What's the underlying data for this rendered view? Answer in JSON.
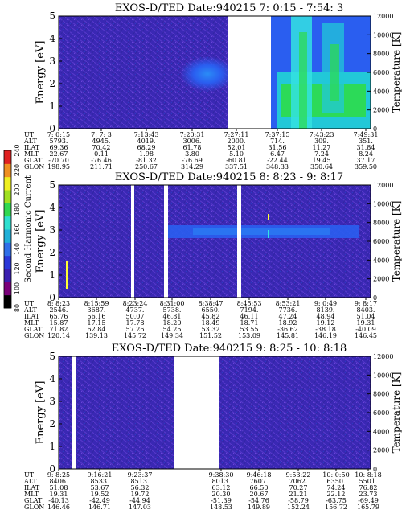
{
  "chart_data": [
    {
      "type": "heatmap",
      "title": "EXOS-D/TED   Date:940215   7: 0:15 - 7:54: 3",
      "ylabel": "Energy [eV]",
      "y2label": "Temperature [K]",
      "ylim": [
        0,
        5
      ],
      "yticks": [
        "0",
        "1",
        "2",
        "3",
        "4",
        "5"
      ],
      "y2lim": [
        0,
        12000
      ],
      "y2ticks": [
        "0",
        "2000",
        "4000",
        "6000",
        "8000",
        "10000",
        "12000"
      ],
      "data_gaps_ut": [
        [
          "7:31:00",
          "7:36:00"
        ]
      ],
      "features": [
        {
          "ut": [
            "7:27:00",
            "7:31:00"
          ],
          "energy_ev": [
            2,
            3
          ],
          "level": "medium-blue"
        },
        {
          "ut": [
            "7:36:00",
            "7:54:03"
          ],
          "energy_ev": [
            0,
            5
          ],
          "level": "high (cyan/green)"
        }
      ],
      "ephemeris": {
        "labels": [
          "UT",
          "ALT",
          "ILAT",
          "MLT",
          "GLAT",
          "GLON"
        ],
        "columns": [
          [
            "7: 0:15",
            "5793.",
            "69.36",
            "22.67",
            "-70.70",
            "198.95"
          ],
          [
            "7: 7: 3",
            "4945.",
            "70.42",
            "0.11",
            "-76.46",
            "211.71"
          ],
          [
            "7:13:43",
            "4019.",
            "68.29",
            "1.98",
            "-81.32",
            "250.67"
          ],
          [
            "7:20:31",
            "3006.",
            "61.78",
            "3.80",
            "-76.69",
            "314.29"
          ],
          [
            "7:27:11",
            "2000.",
            "52.01",
            "5.10",
            "-60.81",
            "337.51"
          ],
          [
            "7:37:15",
            "714.",
            "31.56",
            "6.47",
            "-22.44",
            "348.33"
          ],
          [
            "7:43:23",
            "309.",
            "11.27",
            "7.24",
            "19.45",
            "350.64"
          ],
          [
            "7:49:31",
            "351.",
            "31.84",
            "8.24",
            "37.17",
            "359.50"
          ]
        ]
      }
    },
    {
      "type": "heatmap",
      "title": "EXOS-D/TED   Date:940215   8: 8:23 - 9: 8:17",
      "ylabel": "Energy [eV]",
      "y2label": "Temperature [K]",
      "ylim": [
        0,
        5
      ],
      "yticks": [
        "0",
        "1",
        "2",
        "3",
        "4",
        "5"
      ],
      "y2lim": [
        0,
        12000
      ],
      "y2ticks": [
        "0",
        "2000",
        "4000",
        "6000",
        "8000",
        "10000",
        "12000"
      ],
      "data_gaps_ut": [
        [
          "8:22:30",
          "8:23:10"
        ],
        [
          "8:30:45",
          "8:31:35"
        ],
        [
          "8:44:30",
          "8:45:20"
        ]
      ],
      "features": [
        {
          "ut": [
            "8:31:00",
            "9:00:00"
          ],
          "energy_ev": [
            2.3,
            2.8
          ],
          "level": "medium-blue"
        },
        {
          "ut": [
            "8:09:30",
            "8:09:40"
          ],
          "energy_ev": [
            0.3,
            1.5
          ],
          "level": "high (yellow)"
        }
      ],
      "ephemeris": {
        "labels": [
          "UT",
          "ALT",
          "ILAT",
          "MLT",
          "GLAT",
          "GLON"
        ],
        "columns": [
          [
            "8: 8:23",
            "2546.",
            "65.76",
            "15.87",
            "71.82",
            "120.14"
          ],
          [
            "8:15:59",
            "3687.",
            "56.16",
            "17.15",
            "62.84",
            "139.13"
          ],
          [
            "8:23:24",
            "4737.",
            "50.07",
            "17.78",
            "57.26",
            "145.72"
          ],
          [
            "8:31:00",
            "5738.",
            "46.81",
            "18.20",
            "54.25",
            "149.34"
          ],
          [
            "8:38:47",
            "6550.",
            "45.82",
            "18.49",
            "53.32",
            "151.52"
          ],
          [
            "8:45:53",
            "7194.",
            "46.11",
            "18.71",
            "53.55",
            "153.09"
          ],
          [
            "8:53:21",
            "7736.",
            "47.24",
            "18.92",
            "-36.62",
            "145.81"
          ],
          [
            "9: 0:49",
            "8139.",
            "48.94",
            "19.12",
            "-38.18",
            "146.19"
          ],
          [
            "9: 8:17",
            "8403.",
            "51.04",
            "19.31",
            "-40.09",
            "146.45"
          ]
        ]
      }
    },
    {
      "type": "heatmap",
      "title": "EXOS-D/TED   Date:940215   9: 8:25 - 10: 8:18",
      "ylabel": "Energy [eV]",
      "y2label": "Temperature [K]",
      "ylim": [
        0,
        5
      ],
      "yticks": [
        "0",
        "1",
        "2",
        "3",
        "4",
        "5"
      ],
      "y2lim": [
        0,
        12000
      ],
      "y2ticks": [
        "0",
        "2000",
        "4000",
        "6000",
        "8000",
        "10000",
        "12000"
      ],
      "data_gaps_ut": [
        [
          "9:11:00",
          "9:12:00"
        ],
        [
          "9:31:00",
          "9:38:30"
        ]
      ],
      "features": [],
      "ephemeris": {
        "labels": [
          "UT",
          "ALT",
          "ILAT",
          "MLT",
          "GLAT",
          "GLON"
        ],
        "columns": [
          [
            "9: 8:25",
            "8406.",
            "51.08",
            "19.31",
            "-40.13",
            "146.46"
          ],
          [
            "9:16:21",
            "8533.",
            "53.67",
            "19.52",
            "-42.49",
            "146.71"
          ],
          [
            "9:23:37",
            "8513.",
            "56.32",
            "19.72",
            "-44.94",
            "147.03"
          ],
          [
            "",
            "",
            "",
            "",
            "",
            ""
          ],
          [
            "9:38:30",
            "8013.",
            "63.12",
            "20.30",
            "-51.39",
            "148.53"
          ],
          [
            "9:46:18",
            "7607.",
            "66.50",
            "20.67",
            "-54.76",
            "149.89"
          ],
          [
            "9:53:22",
            "7062.",
            "70.27",
            "21.21",
            "-58.79",
            "152.24"
          ],
          [
            "10: 0:50",
            "6350.",
            "74.24",
            "22.12",
            "-63.75",
            "156.72"
          ],
          [
            "10: 8:18",
            "5501.",
            "76.82",
            "23.73",
            "-69.49",
            "165.79"
          ]
        ]
      }
    }
  ],
  "colorbar": {
    "label": "Second Harmonic Current",
    "ticks": [
      "80",
      "100",
      "120",
      "140",
      "160",
      "180",
      "200",
      "220",
      "240"
    ],
    "range": [
      80,
      240
    ],
    "colors": [
      "#000000",
      "#7a007a",
      "#3a1fb0",
      "#2a37d8",
      "#2f6fe8",
      "#20b0d8",
      "#2ee0d0",
      "#30d850",
      "#a0e020",
      "#f0f020",
      "#f09020",
      "#e02020"
    ]
  },
  "colors": {
    "background": "#3a28b4",
    "texture": "#5a3acd",
    "blob": "#2a5cf0",
    "green": "#2edc4a",
    "cyan": "#34e2e2",
    "yellow": "#ffff33"
  }
}
